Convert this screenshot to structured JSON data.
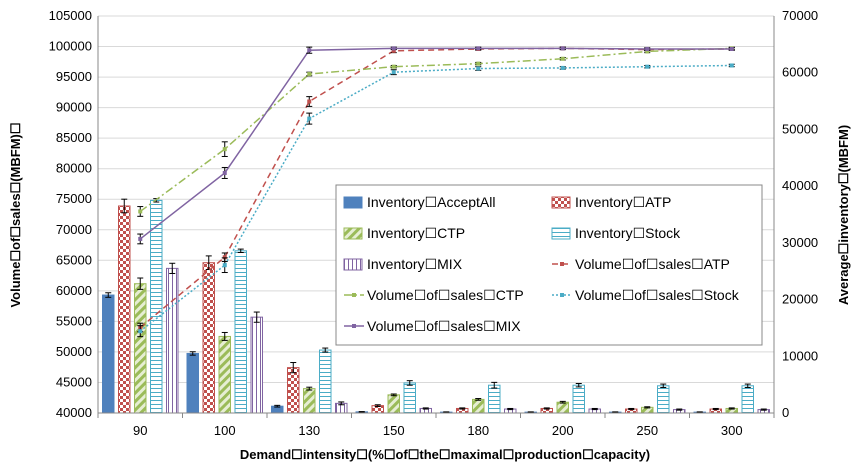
{
  "chart_data": {
    "type": "bar",
    "xlabel": "Demand☐intensity☐(%☐of☐the☐maximal☐production☐capacity)",
    "ylabel": "Volume☐of☐sales☐(MBFM)☐",
    "y2label": "Average☐inventory☐(MBFM)",
    "categories": [
      "90",
      "100",
      "130",
      "150",
      "180",
      "200",
      "250",
      "300"
    ],
    "ylim": [
      40000,
      105000
    ],
    "y2lim": [
      0,
      70000
    ],
    "yticks": [
      "40000",
      "45000",
      "50000",
      "55000",
      "60000",
      "65000",
      "70000",
      "75000",
      "80000",
      "85000",
      "90000",
      "95000",
      "100000",
      "105000"
    ],
    "y2ticks": [
      "0",
      "10000",
      "20000",
      "30000",
      "40000",
      "50000",
      "60000",
      "70000"
    ],
    "grid": true,
    "legend_position": "center-right",
    "bar_series": [
      {
        "name": "Inventory☐AcceptAll",
        "pattern": "solid",
        "color": "#4f81bd",
        "values": [
          20800,
          10500,
          1200,
          200,
          150,
          150,
          150,
          150
        ],
        "errors": [
          400,
          300,
          150,
          50,
          50,
          50,
          50,
          50
        ]
      },
      {
        "name": "Inventory☐ATP",
        "pattern": "checker",
        "color": "#c0504d",
        "values": [
          36500,
          26500,
          8000,
          1300,
          800,
          800,
          700,
          700
        ],
        "errors": [
          1200,
          1200,
          900,
          150,
          100,
          100,
          100,
          100
        ]
      },
      {
        "name": "Inventory☐CTP",
        "pattern": "diagonal",
        "color": "#9bbb59",
        "values": [
          22800,
          13500,
          4300,
          3200,
          2400,
          1900,
          1000,
          800
        ],
        "errors": [
          1000,
          700,
          250,
          150,
          150,
          150,
          100,
          100
        ]
      },
      {
        "name": "Inventory☐Stock",
        "pattern": "hlines",
        "color": "#4bacc6",
        "values": [
          37500,
          28600,
          11100,
          5300,
          4900,
          4900,
          4800,
          4800
        ],
        "errors": [
          300,
          300,
          350,
          400,
          500,
          300,
          300,
          300
        ]
      },
      {
        "name": "Inventory☐MIX",
        "pattern": "vlines",
        "color": "#8064a2",
        "values": [
          25500,
          16900,
          1700,
          800,
          700,
          700,
          600,
          600
        ],
        "errors": [
          900,
          900,
          250,
          100,
          100,
          100,
          100,
          100
        ]
      }
    ],
    "line_series": [
      {
        "name": "Volume☐of☐sales☐ATP",
        "color": "#c0504d",
        "dash": "6,4",
        "values": [
          54000,
          65500,
          91000,
          99300,
          99600,
          99700,
          99500,
          99600
        ],
        "errors": [
          700,
          700,
          800,
          300,
          200,
          200,
          200,
          200
        ]
      },
      {
        "name": "Volume☐of☐sales☐CTP",
        "color": "#9bbb59",
        "dash": "8,3,2,3",
        "values": [
          73000,
          83200,
          95500,
          96700,
          97200,
          98000,
          99200,
          99700
        ],
        "errors": [
          800,
          1200,
          300,
          200,
          200,
          200,
          200,
          200
        ]
      },
      {
        "name": "Volume☐of☐sales☐Stock",
        "color": "#4bacc6",
        "dash": "2,2",
        "values": [
          53400,
          64200,
          88200,
          95800,
          96400,
          96500,
          96700,
          96900
        ],
        "errors": [
          900,
          1200,
          900,
          400,
          300,
          200,
          200,
          200
        ]
      },
      {
        "name": "Volume☐of☐sales☐MIX",
        "color": "#8064a2",
        "dash": "",
        "values": [
          68500,
          79300,
          99400,
          99700,
          99700,
          99700,
          99600,
          99600
        ],
        "errors": [
          800,
          900,
          500,
          200,
          200,
          200,
          200,
          200
        ]
      }
    ],
    "legend": [
      "Inventory☐AcceptAll",
      "Inventory☐ATP",
      "Inventory☐CTP",
      "Inventory☐Stock",
      "Inventory☐MIX",
      "Volume☐of☐sales☐ATP",
      "Volume☐of☐sales☐CTP",
      "Volume☐of☐sales☐Stock",
      "Volume☐of☐sales☐MIX"
    ]
  }
}
